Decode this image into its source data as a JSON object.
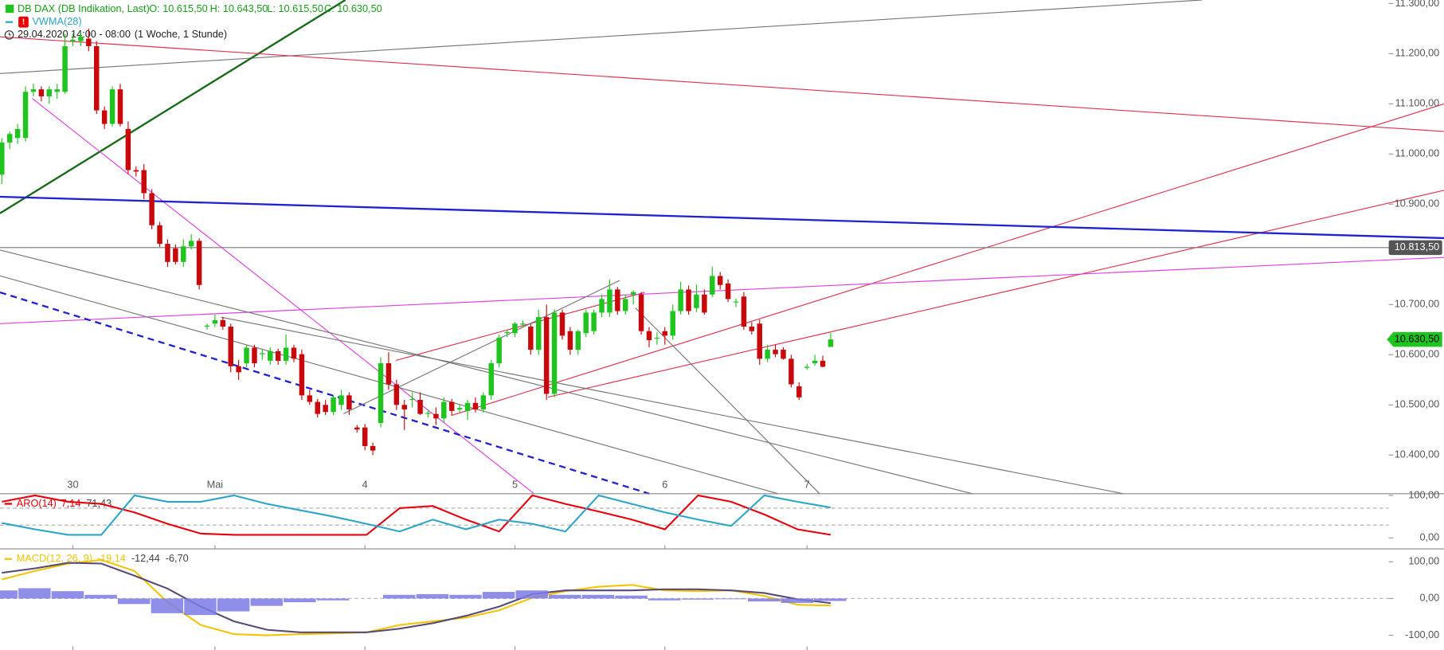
{
  "chart_data": [
    {
      "type": "candlestick",
      "header": {
        "title": "DB DAX (DB Indikation, Last)",
        "ohlc": [
          "O: 10.615,50",
          "H: 10.643,50",
          "L: 10.615,50",
          "C: 10.630,50"
        ],
        "indicator": "VWMA(28)",
        "period": "29.04.2020 14:00 - 08:00",
        "interval": "(1 Woche, 1 Stunde)"
      },
      "up_color": "#1fc41f",
      "down_color": "#c8080b",
      "categories": [
        null,
        null,
        null,
        null,
        null,
        null,
        null,
        null,
        null,
        "30",
        null,
        null,
        null,
        null,
        null,
        null,
        null,
        null,
        null,
        null,
        null,
        null,
        null,
        null,
        null,
        null,
        null,
        "Mai",
        null,
        null,
        null,
        null,
        null,
        null,
        null,
        null,
        null,
        null,
        null,
        null,
        null,
        null,
        null,
        null,
        null,
        null,
        "4",
        null,
        null,
        null,
        null,
        null,
        null,
        null,
        null,
        null,
        null,
        null,
        null,
        null,
        null,
        null,
        null,
        null,
        null,
        "5",
        null,
        null,
        null,
        null,
        null,
        null,
        null,
        null,
        null,
        null,
        null,
        null,
        null,
        null,
        null,
        null,
        null,
        null,
        "6",
        null,
        null,
        null,
        null,
        null,
        null,
        null,
        null,
        null,
        null,
        null,
        null,
        null,
        null,
        null,
        null,
        null,
        "7",
        null,
        null,
        null
      ],
      "ohlc": [
        [
          10959,
          11032,
          10940,
          11023
        ],
        [
          11023,
          11045,
          11010,
          11040
        ],
        [
          11032,
          11060,
          11020,
          11050
        ],
        [
          11032,
          11135,
          11025,
          11124
        ],
        [
          11124,
          11140,
          11115,
          11129
        ],
        [
          11129,
          11135,
          11105,
          11115
        ],
        [
          11115,
          11135,
          11100,
          11129
        ],
        [
          11124,
          11140,
          11110,
          11129
        ],
        [
          11124,
          11240,
          11120,
          11215
        ],
        [
          11225,
          11240,
          11215,
          11228
        ],
        [
          11225,
          11245,
          11215,
          11234
        ],
        [
          11230,
          11250,
          11205,
          11215
        ],
        [
          11215,
          11225,
          11080,
          11087
        ],
        [
          11087,
          11095,
          11050,
          11060
        ],
        [
          11060,
          11135,
          11055,
          11129
        ],
        [
          11129,
          11140,
          11055,
          11060
        ],
        [
          11050,
          11065,
          10960,
          10968
        ],
        [
          10968,
          10975,
          10955,
          10965
        ],
        [
          10968,
          10980,
          10910,
          10922
        ],
        [
          10922,
          10930,
          10850,
          10858
        ],
        [
          10858,
          10865,
          10815,
          10821
        ],
        [
          10821,
          10830,
          10775,
          10785
        ],
        [
          10812,
          10820,
          10780,
          10785
        ],
        [
          10785,
          10830,
          10775,
          10816
        ],
        [
          10816,
          10840,
          10810,
          10827
        ],
        [
          10827,
          10832,
          10730,
          10739
        ],
        [
          10656,
          10662,
          10650,
          10658
        ],
        [
          10662,
          10680,
          10655,
          10669
        ],
        [
          10669,
          10675,
          10650,
          10656
        ],
        [
          10656,
          10662,
          10565,
          10577
        ],
        [
          10577,
          10590,
          10550,
          10565
        ],
        [
          10583,
          10620,
          10575,
          10614
        ],
        [
          10614,
          10620,
          10575,
          10583
        ],
        [
          10601,
          10610,
          10590,
          10603
        ],
        [
          10588,
          10615,
          10580,
          10607
        ],
        [
          10607,
          10612,
          10580,
          10588
        ],
        [
          10588,
          10640,
          10580,
          10614
        ],
        [
          10614,
          10620,
          10585,
          10592
        ],
        [
          10601,
          10610,
          10510,
          10519
        ],
        [
          10519,
          10530,
          10500,
          10506
        ],
        [
          10506,
          10512,
          10475,
          10482
        ],
        [
          10500,
          10510,
          10480,
          10486
        ],
        [
          10486,
          10520,
          10480,
          10515
        ],
        [
          10500,
          10530,
          10490,
          10519
        ],
        [
          10519,
          10525,
          10480,
          10491
        ],
        [
          10455,
          10460,
          10445,
          10451
        ],
        [
          10455,
          10462,
          10410,
          10418
        ],
        [
          10418,
          10425,
          10400,
          10409
        ],
        [
          10464,
          10595,
          10455,
          10583
        ],
        [
          10583,
          10605,
          10530,
          10541
        ],
        [
          10541,
          10550,
          10490,
          10500
        ],
        [
          10500,
          10510,
          10450,
          10491
        ],
        [
          10510,
          10525,
          10495,
          10512
        ],
        [
          10510,
          10525,
          10480,
          10482
        ],
        [
          10482,
          10490,
          10475,
          10484
        ],
        [
          10482,
          10495,
          10460,
          10473
        ],
        [
          10473,
          10515,
          10465,
          10506
        ],
        [
          10506,
          10512,
          10480,
          10488
        ],
        [
          10491,
          10500,
          10485,
          10494
        ],
        [
          10488,
          10510,
          10470,
          10504
        ],
        [
          10504,
          10515,
          10485,
          10491
        ],
        [
          10491,
          10525,
          10485,
          10519
        ],
        [
          10519,
          10590,
          10510,
          10583
        ],
        [
          10583,
          10640,
          10575,
          10634
        ],
        [
          10643,
          10650,
          10635,
          10645
        ],
        [
          10643,
          10665,
          10635,
          10662
        ],
        [
          10662,
          10668,
          10655,
          10662
        ],
        [
          10656,
          10662,
          10600,
          10610
        ],
        [
          10610,
          10690,
          10600,
          10675
        ],
        [
          10675,
          10700,
          10510,
          10522
        ],
        [
          10522,
          10690,
          10515,
          10684
        ],
        [
          10684,
          10690,
          10630,
          10638
        ],
        [
          10647,
          10655,
          10600,
          10610
        ],
        [
          10610,
          10650,
          10600,
          10647
        ],
        [
          10643,
          10690,
          10635,
          10684
        ],
        [
          10647,
          10690,
          10640,
          10684
        ],
        [
          10684,
          10720,
          10675,
          10711
        ],
        [
          10684,
          10750,
          10675,
          10730
        ],
        [
          10730,
          10735,
          10680,
          10687
        ],
        [
          10687,
          10720,
          10680,
          10711
        ],
        [
          10720,
          10728,
          10700,
          10725
        ],
        [
          10720,
          10725,
          10640,
          10647
        ],
        [
          10647,
          10655,
          10615,
          10629
        ],
        [
          10632,
          10645,
          10620,
          10634
        ],
        [
          10647,
          10655,
          10620,
          10638
        ],
        [
          10638,
          10700,
          10630,
          10687
        ],
        [
          10687,
          10745,
          10680,
          10730
        ],
        [
          10730,
          10738,
          10680,
          10687
        ],
        [
          10693,
          10740,
          10685,
          10720
        ],
        [
          10720,
          10730,
          10680,
          10684
        ],
        [
          10720,
          10775,
          10715,
          10757
        ],
        [
          10757,
          10765,
          10730,
          10739
        ],
        [
          10742,
          10750,
          10705,
          10711
        ],
        [
          10705,
          10712,
          10695,
          10706
        ],
        [
          10716,
          10725,
          10650,
          10656
        ],
        [
          10656,
          10665,
          10640,
          10647
        ],
        [
          10662,
          10670,
          10580,
          10592
        ],
        [
          10592,
          10620,
          10585,
          10610
        ],
        [
          10610,
          10620,
          10595,
          10601
        ],
        [
          10610,
          10615,
          10590,
          10592
        ],
        [
          10592,
          10600,
          10535,
          10541
        ],
        [
          10537,
          10545,
          10510,
          10515
        ],
        [
          10574,
          10582,
          10570,
          10576
        ],
        [
          10583,
          10600,
          10578,
          10588
        ],
        [
          10588,
          10598,
          10575,
          10576
        ],
        [
          10615.5,
          10643.5,
          10615.5,
          10630.5
        ]
      ],
      "ylim": [
        10323,
        11307
      ],
      "yticks": [
        {
          "value": 11300,
          "label": "11.300,00"
        },
        {
          "value": 11200,
          "label": "11.200,00"
        },
        {
          "value": 11100,
          "label": "11.100,00"
        },
        {
          "value": 11000,
          "label": "11.000,00"
        },
        {
          "value": 10900,
          "label": "10.900,00"
        },
        {
          "value": 10700,
          "label": "10.700,00"
        },
        {
          "value": 10600,
          "label": "10.600,00"
        },
        {
          "value": 10500,
          "label": "10.500,00"
        },
        {
          "value": 10400,
          "label": "10.400,00"
        }
      ],
      "price_line": {
        "value": 10813.5,
        "label": "10.813,50"
      },
      "last_price_label": "10.630,50"
    },
    {
      "type": "line",
      "title": "ARO(14)",
      "series": [
        {
          "color": "#e8000b",
          "value_label": "7,14",
          "values": [
            85,
            100,
            85,
            80,
            60,
            33,
            10,
            7,
            7,
            7,
            7,
            7,
            70,
            75,
            43,
            15,
            100,
            80,
            62,
            43,
            20,
            100,
            85,
            55,
            20,
            7.14
          ]
        },
        {
          "color": "#2aa6c9",
          "value_label": "71,43",
          "values": [
            35,
            20,
            7,
            7,
            100,
            85,
            85,
            100,
            80,
            65,
            50,
            33,
            15,
            43,
            20,
            43,
            33,
            15,
            100,
            80,
            60,
            43,
            28,
            100,
            85,
            71.43
          ]
        }
      ],
      "levels": [
        70,
        30
      ],
      "ylim": [
        -26,
        104
      ],
      "yticks": [
        {
          "value": 100,
          "label": "100,00"
        },
        {
          "value": 0,
          "label": "0,00"
        }
      ]
    },
    {
      "type": "macd",
      "title": "MACD(12, 26, 9)",
      "series": [
        {
          "color": "#f5c400",
          "value_label": "-19,14",
          "values": [
            52,
            75,
            95,
            105,
            75,
            -10,
            -72,
            -97,
            -100,
            -97,
            -95,
            -92,
            -72,
            -62,
            -52,
            -32,
            2,
            20,
            32,
            37,
            22,
            20,
            22,
            7,
            -17,
            -19.14
          ]
        },
        {
          "color": "#5a4a7a",
          "value_label": "-12,44",
          "values": [
            70,
            82,
            97,
            95,
            62,
            27,
            -22,
            -62,
            -85,
            -92,
            -92,
            -92,
            -82,
            -67,
            -47,
            -22,
            12,
            22,
            22,
            22,
            25,
            25,
            22,
            15,
            -2,
            -12.44
          ]
        },
        {
          "color": "#7b7be6",
          "value_label": "-6,70",
          "kind": "histogram",
          "values": [
            22,
            28,
            20,
            10,
            -15,
            -40,
            -45,
            -35,
            -20,
            -10,
            -5,
            0,
            10,
            12,
            10,
            18,
            22,
            10,
            10,
            8,
            -5,
            -3,
            -2,
            -8,
            -12,
            -6.7
          ]
        }
      ],
      "ylim": [
        -140,
        135
      ],
      "yticks": [
        {
          "value": 100,
          "label": "100,00"
        },
        {
          "value": 0,
          "label": "0,00"
        },
        {
          "value": -100,
          "label": "-100,00"
        }
      ]
    }
  ]
}
